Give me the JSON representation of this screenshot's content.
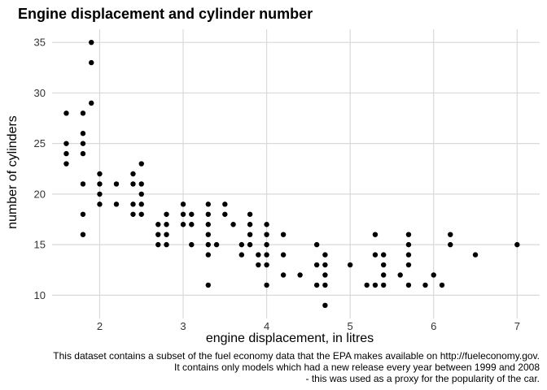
{
  "chart_data": {
    "type": "scatter",
    "title": "Engine displacement and cylinder number",
    "xlabel": "engine displacement, in litres",
    "ylabel": "number of cylinders",
    "caption": [
      "This dataset contains a subset of the fuel economy data that the EPA makes available on http://fueleconomy.gov.",
      "It contains only models which had a new release every year between 1999 and 2008",
      "- this was used as a proxy for the popularity of the car."
    ],
    "xlim": [
      1.43,
      7.27
    ],
    "ylim": [
      7.7,
      36.3
    ],
    "x_ticks": [
      2,
      3,
      4,
      5,
      6,
      7
    ],
    "y_ticks": [
      10,
      15,
      20,
      25,
      30,
      35
    ],
    "grid": true,
    "points": [
      [
        1.6,
        28
      ],
      [
        1.6,
        25
      ],
      [
        1.6,
        24
      ],
      [
        1.6,
        23
      ],
      [
        1.8,
        28
      ],
      [
        1.8,
        26
      ],
      [
        1.8,
        25
      ],
      [
        1.8,
        24
      ],
      [
        1.8,
        21
      ],
      [
        1.8,
        18
      ],
      [
        1.8,
        16
      ],
      [
        1.9,
        35
      ],
      [
        1.9,
        33
      ],
      [
        1.9,
        29
      ],
      [
        2.0,
        22
      ],
      [
        2.0,
        21
      ],
      [
        2.0,
        20
      ],
      [
        2.0,
        19
      ],
      [
        2.2,
        21
      ],
      [
        2.2,
        19
      ],
      [
        2.4,
        22
      ],
      [
        2.4,
        21
      ],
      [
        2.4,
        19
      ],
      [
        2.4,
        18
      ],
      [
        2.5,
        23
      ],
      [
        2.5,
        21
      ],
      [
        2.5,
        20
      ],
      [
        2.5,
        19
      ],
      [
        2.5,
        18
      ],
      [
        2.7,
        17
      ],
      [
        2.7,
        16
      ],
      [
        2.7,
        15
      ],
      [
        2.8,
        18
      ],
      [
        2.8,
        17
      ],
      [
        2.8,
        16
      ],
      [
        2.8,
        15
      ],
      [
        3.0,
        19
      ],
      [
        3.0,
        18
      ],
      [
        3.0,
        17
      ],
      [
        3.1,
        18
      ],
      [
        3.1,
        17
      ],
      [
        3.1,
        15
      ],
      [
        3.3,
        19
      ],
      [
        3.3,
        18
      ],
      [
        3.3,
        17
      ],
      [
        3.3,
        16
      ],
      [
        3.3,
        15
      ],
      [
        3.3,
        14
      ],
      [
        3.3,
        11
      ],
      [
        3.4,
        15
      ],
      [
        3.5,
        19
      ],
      [
        3.5,
        18
      ],
      [
        3.6,
        17
      ],
      [
        3.7,
        15
      ],
      [
        3.7,
        14
      ],
      [
        3.8,
        18
      ],
      [
        3.8,
        17
      ],
      [
        3.8,
        16
      ],
      [
        3.8,
        15
      ],
      [
        3.9,
        14
      ],
      [
        3.9,
        13
      ],
      [
        4.0,
        17
      ],
      [
        4.0,
        16
      ],
      [
        4.0,
        15
      ],
      [
        4.0,
        14
      ],
      [
        4.0,
        13
      ],
      [
        4.0,
        11
      ],
      [
        4.2,
        16
      ],
      [
        4.2,
        14
      ],
      [
        4.2,
        12
      ],
      [
        4.4,
        12
      ],
      [
        4.6,
        15
      ],
      [
        4.6,
        13
      ],
      [
        4.6,
        11
      ],
      [
        4.7,
        14
      ],
      [
        4.7,
        13
      ],
      [
        4.7,
        12
      ],
      [
        4.7,
        11
      ],
      [
        4.7,
        9
      ],
      [
        5.0,
        13
      ],
      [
        5.2,
        11
      ],
      [
        5.3,
        16
      ],
      [
        5.3,
        14
      ],
      [
        5.3,
        11
      ],
      [
        5.4,
        14
      ],
      [
        5.4,
        13
      ],
      [
        5.4,
        12
      ],
      [
        5.4,
        11
      ],
      [
        5.6,
        12
      ],
      [
        5.7,
        16
      ],
      [
        5.7,
        15
      ],
      [
        5.7,
        14
      ],
      [
        5.7,
        13
      ],
      [
        5.7,
        11
      ],
      [
        5.9,
        11
      ],
      [
        6.0,
        12
      ],
      [
        6.1,
        11
      ],
      [
        6.2,
        16
      ],
      [
        6.2,
        15
      ],
      [
        6.5,
        14
      ],
      [
        7.0,
        15
      ]
    ]
  }
}
